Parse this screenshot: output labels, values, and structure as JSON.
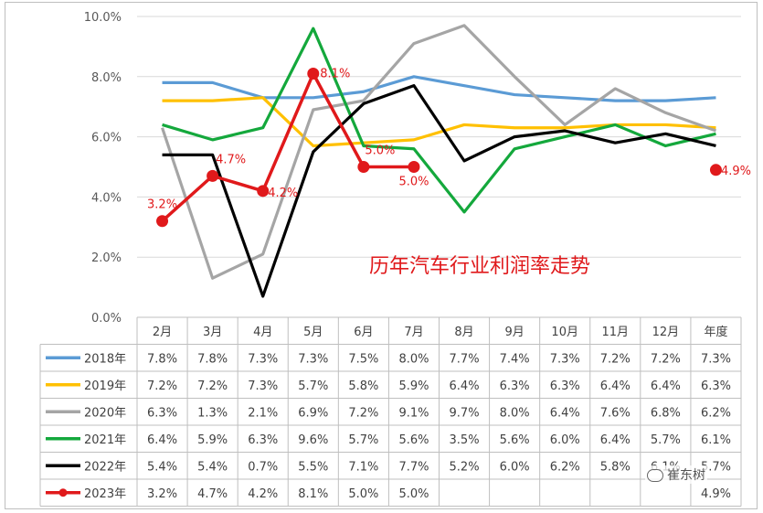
{
  "chart_data": {
    "type": "line",
    "title": "历年汽车行业利润率走势",
    "categories": [
      "2月",
      "3月",
      "4月",
      "5月",
      "6月",
      "7月",
      "8月",
      "9月",
      "10月",
      "11月",
      "12月",
      "年度"
    ],
    "y_ticks": [
      "0.0%",
      "2.0%",
      "4.0%",
      "6.0%",
      "8.0%",
      "10.0%"
    ],
    "ylim": [
      0,
      10
    ],
    "grid": true,
    "series": [
      {
        "name": "2018年",
        "color": "#5b9bd5",
        "values": [
          7.8,
          7.8,
          7.3,
          7.3,
          7.5,
          8.0,
          7.7,
          7.4,
          7.3,
          7.2,
          7.2,
          7.3
        ],
        "labels": [
          "7.8%",
          "7.8%",
          "7.3%",
          "7.3%",
          "7.5%",
          "8.0%",
          "7.7%",
          "7.4%",
          "7.3%",
          "7.2%",
          "7.2%",
          "7.3%"
        ]
      },
      {
        "name": "2019年",
        "color": "#ffc000",
        "values": [
          7.2,
          7.2,
          7.3,
          5.7,
          5.8,
          5.9,
          6.4,
          6.3,
          6.3,
          6.4,
          6.4,
          6.3
        ],
        "labels": [
          "7.2%",
          "7.2%",
          "7.3%",
          "5.7%",
          "5.8%",
          "5.9%",
          "6.4%",
          "6.3%",
          "6.3%",
          "6.4%",
          "6.4%",
          "6.3%"
        ]
      },
      {
        "name": "2020年",
        "color": "#a5a5a5",
        "values": [
          6.3,
          1.3,
          2.1,
          6.9,
          7.2,
          9.1,
          9.7,
          8.0,
          6.4,
          7.6,
          6.8,
          6.2
        ],
        "labels": [
          "6.3%",
          "1.3%",
          "2.1%",
          "6.9%",
          "7.2%",
          "9.1%",
          "9.7%",
          "8.0%",
          "6.4%",
          "7.6%",
          "6.8%",
          "6.2%"
        ]
      },
      {
        "name": "2021年",
        "color": "#14a83c",
        "values": [
          6.4,
          5.9,
          6.3,
          9.6,
          5.7,
          5.6,
          3.5,
          5.6,
          6.0,
          6.4,
          5.7,
          6.1
        ],
        "labels": [
          "6.4%",
          "5.9%",
          "6.3%",
          "9.6%",
          "5.7%",
          "5.6%",
          "3.5%",
          "5.6%",
          "6.0%",
          "6.4%",
          "5.7%",
          "6.1%"
        ]
      },
      {
        "name": "2022年",
        "color": "#000000",
        "values": [
          5.4,
          5.4,
          0.7,
          5.5,
          7.1,
          7.7,
          5.2,
          6.0,
          6.2,
          5.8,
          6.1,
          5.7
        ],
        "labels": [
          "5.4%",
          "5.4%",
          "0.7%",
          "5.5%",
          "7.1%",
          "7.7%",
          "5.2%",
          "6.0%",
          "6.2%",
          "5.8%",
          "6.1%",
          "5.7%"
        ]
      },
      {
        "name": "2023年",
        "color": "#e0191b",
        "values": [
          3.2,
          4.7,
          4.2,
          8.1,
          5.0,
          5.0,
          null,
          null,
          null,
          null,
          null,
          4.9
        ],
        "labels": [
          "3.2%",
          "4.7%",
          "4.2%",
          "8.1%",
          "5.0%",
          "5.0%",
          "",
          "",
          "",
          "",
          "",
          "4.9%"
        ]
      }
    ]
  },
  "watermark": "崔东树"
}
